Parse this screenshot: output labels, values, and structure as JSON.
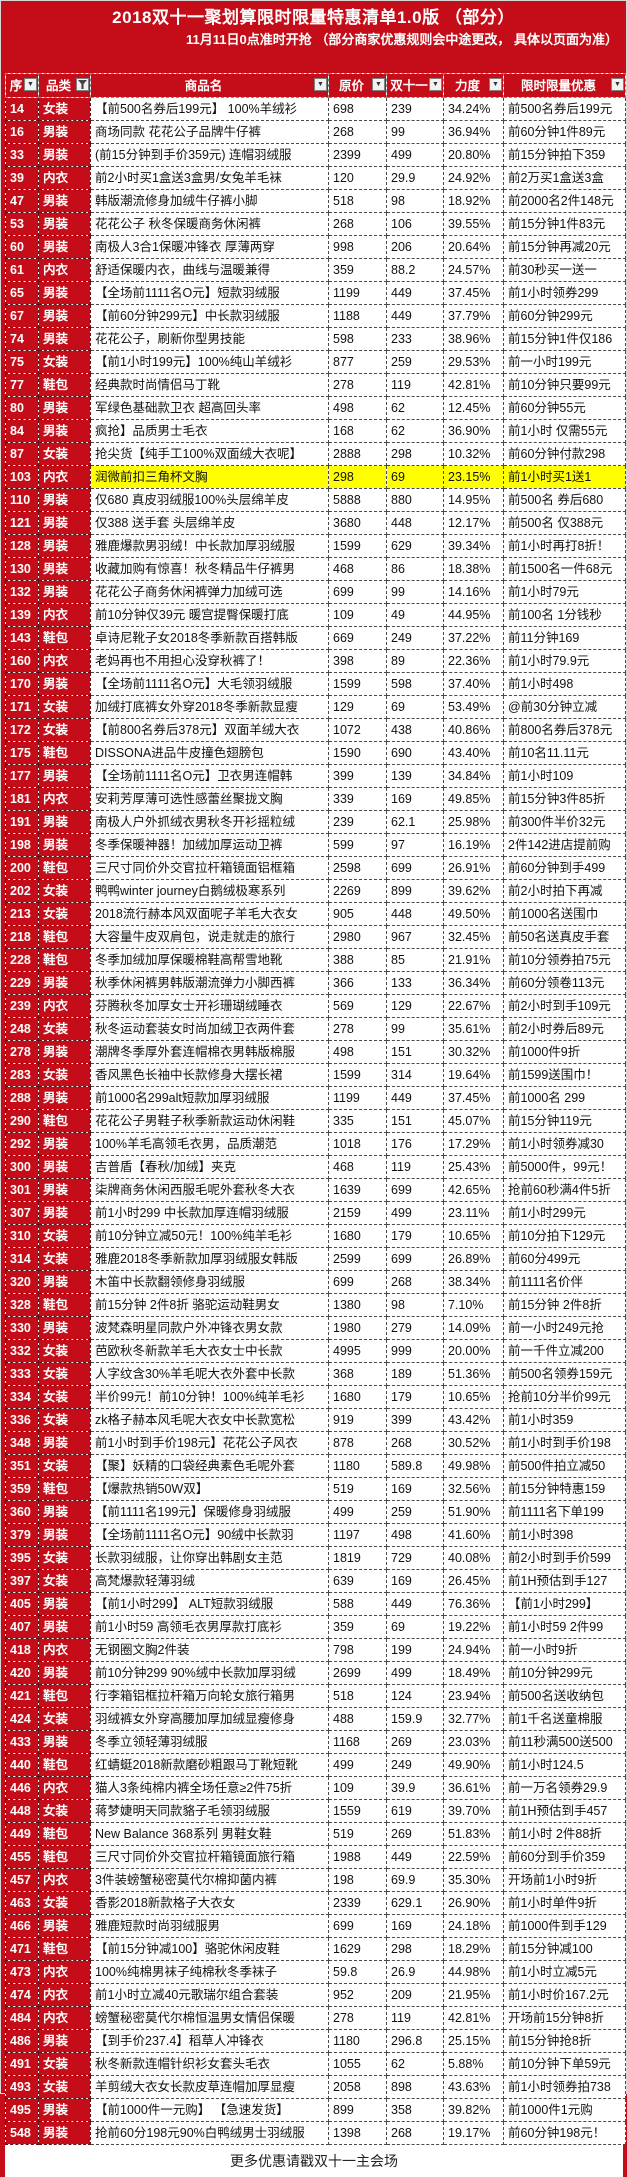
{
  "title": "2018双十一聚划算限时限量特惠清单1.0版 （部分）",
  "subtitle": "11月11日0点准时开抢 （部分商家优惠规则会中途更改， 具体以页面为准）",
  "footer_note": "更多优惠请戳双十一主会场",
  "colors": {
    "brand_red": "#c40d18",
    "highlight_yellow": "#ffff00",
    "cell_bg": "#ffffff"
  },
  "icons": {
    "dropdown_glyph": "▼",
    "funnel": "filter-funnel"
  },
  "highlight_seq": "103",
  "columns": [
    {
      "key": "seq",
      "label": "序",
      "filtered": false
    },
    {
      "key": "cat",
      "label": "品类",
      "filtered": true
    },
    {
      "key": "name",
      "label": "商品名",
      "filtered": false
    },
    {
      "key": "orig",
      "label": "原价",
      "filtered": false
    },
    {
      "key": "dxi",
      "label": "双十一",
      "filtered": false
    },
    {
      "key": "rate",
      "label": "力度",
      "filtered": false
    },
    {
      "key": "promo",
      "label": "限时限量优惠",
      "filtered": false
    }
  ],
  "rows": [
    [
      "14",
      "女装",
      "【前500名券后199元】 100%羊绒衫",
      "698",
      "239",
      "34.24%",
      "前500名券后199元"
    ],
    [
      "16",
      "男装",
      "商场同款 花花公子品牌牛仔裤",
      "268",
      "99",
      "36.94%",
      "前60分钟1件89元"
    ],
    [
      "33",
      "男装",
      "(前15分钟到手价359元) 连帽羽绒服",
      "2399",
      "499",
      "20.80%",
      "前15分钟拍下359"
    ],
    [
      "39",
      "内衣",
      "前2小时买1盒送3盒男/女兔羊毛袜",
      "120",
      "29.9",
      "24.92%",
      "前2万买1盒送3盒"
    ],
    [
      "47",
      "男装",
      "韩版潮流修身加绒牛仔裤小脚",
      "518",
      "98",
      "18.92%",
      "前2000名2件148元"
    ],
    [
      "53",
      "男装",
      "花花公子 秋冬保暖商务休闲裤",
      "268",
      "106",
      "39.55%",
      "前15分钟1件83元"
    ],
    [
      "60",
      "男装",
      "南极人3合1保暖冲锋衣 厚薄两穿",
      "998",
      "206",
      "20.64%",
      "前15分钟再减20元"
    ],
    [
      "61",
      "内衣",
      "舒适保暖内衣，曲线与温暖兼得",
      "359",
      "88.2",
      "24.57%",
      "前30秒买一送一"
    ],
    [
      "65",
      "男装",
      "【全场前1111名O元】短款羽绒服",
      "1199",
      "449",
      "37.45%",
      "前1小时领券299"
    ],
    [
      "67",
      "男装",
      "【前60分钟299元】中长款羽绒服",
      "1188",
      "449",
      "37.79%",
      "前60分钟299元"
    ],
    [
      "74",
      "男装",
      "花花公子，刷新你型男技能",
      "598",
      "233",
      "38.96%",
      "前15分钟1件仅186"
    ],
    [
      "75",
      "女装",
      "【前1小时199元】100%纯山羊绒衫",
      "877",
      "259",
      "29.53%",
      "前一小时199元"
    ],
    [
      "77",
      "鞋包",
      "经典款时尚情侣马丁靴",
      "278",
      "119",
      "42.81%",
      "前10分钟只要99元"
    ],
    [
      "80",
      "男装",
      "军绿色基础款卫衣 超高回头率",
      "498",
      "62",
      "12.45%",
      "前60分钟55元"
    ],
    [
      "84",
      "男装",
      "疯抢】品质男士毛衣",
      "168",
      "62",
      "36.90%",
      "前1小时 仅需55元"
    ],
    [
      "87",
      "女装",
      "抢尖货【纯手工100%双面绒大衣呢】",
      "2888",
      "298",
      "10.32%",
      "前60分钟付款298"
    ],
    [
      "103",
      "内衣",
      "润微前扣三角杯文胸",
      "298",
      "69",
      "23.15%",
      "前1小时买1送1"
    ],
    [
      "110",
      "男装",
      "仅680 真皮羽绒服100%头层绵羊皮",
      "5888",
      "880",
      "14.95%",
      "前500名 券后680"
    ],
    [
      "121",
      "男装",
      "仅388 送手套 头层绵羊皮",
      "3680",
      "448",
      "12.17%",
      "前500名 仅388元"
    ],
    [
      "128",
      "男装",
      "雅鹿爆款男羽绒！中长款加厚羽绒服",
      "1599",
      "629",
      "39.34%",
      "前1小时再打8折！"
    ],
    [
      "130",
      "男装",
      "收藏加购有惊喜！秋冬精品牛仔裤男",
      "468",
      "86",
      "18.38%",
      "前1500名一件68元"
    ],
    [
      "132",
      "男装",
      "花花公子商务休闲裤弹力加绒可选",
      "699",
      "99",
      "14.16%",
      "前1小时79元"
    ],
    [
      "139",
      "内衣",
      "前10分钟仅39元 暖宫提臀保暖打底",
      "109",
      "49",
      "44.95%",
      "前100名 1分钱秒"
    ],
    [
      "143",
      "鞋包",
      "卓诗尼靴子女2018冬季新款百搭韩版",
      "669",
      "249",
      "37.22%",
      "前11分钟169"
    ],
    [
      "160",
      "内衣",
      "老妈再也不用担心没穿秋裤了！",
      "398",
      "89",
      "22.36%",
      "前1小时79.9元"
    ],
    [
      "170",
      "男装",
      "【全场前1111名O元】大毛领羽绒服",
      "1599",
      "598",
      "37.40%",
      "前1小时498"
    ],
    [
      "171",
      "女装",
      "加绒打底裤女外穿2018冬季新款显瘦",
      "129",
      "69",
      "53.49%",
      "@前30分钟立减"
    ],
    [
      "172",
      "女装",
      "【前800名券后378元】双面羊绒大衣",
      "1072",
      "438",
      "40.86%",
      "前800名券后378元"
    ],
    [
      "175",
      "鞋包",
      "DISSONA进品牛皮撞色翅膀包",
      "1590",
      "690",
      "43.40%",
      "前10名11.11元"
    ],
    [
      "177",
      "男装",
      "【全场前1111名O元】卫衣男连帽韩",
      "399",
      "139",
      "34.84%",
      "前1小时109"
    ],
    [
      "181",
      "内衣",
      "安莉芳厚薄可选性感蕾丝聚拢文胸",
      "339",
      "169",
      "49.85%",
      "前15分钟3件85折"
    ],
    [
      "191",
      "男装",
      "南极人户外抓绒衣男秋冬开衫摇粒绒",
      "239",
      "62.1",
      "25.98%",
      "前300件半价32元"
    ],
    [
      "198",
      "男装",
      "冬季保暖神器！加绒加厚运动卫裤",
      "599",
      "97",
      "16.19%",
      "2件142进店提前购"
    ],
    [
      "200",
      "鞋包",
      "三尺寸同价外交官拉杆箱镜面铝框箱",
      "2598",
      "699",
      "26.91%",
      "前60分钟到手499"
    ],
    [
      "202",
      "女装",
      "鸭鸭winter journey白鹅绒极寒系列",
      "2269",
      "899",
      "39.62%",
      "前2小时拍下再减"
    ],
    [
      "213",
      "女装",
      "2018流行赫本风双面呢子羊毛大衣女",
      "905",
      "448",
      "49.50%",
      "前1000名送围巾"
    ],
    [
      "218",
      "鞋包",
      "大容量牛皮双肩包，说走就走的旅行",
      "2980",
      "967",
      "32.45%",
      "前50名送真皮手套"
    ],
    [
      "228",
      "鞋包",
      "冬季加绒加厚保暖棉鞋高帮雪地靴",
      "388",
      "85",
      "21.91%",
      "前10分领券拍75元"
    ],
    [
      "229",
      "男装",
      "秋季休闲裤男韩版潮流弹力小脚西裤",
      "366",
      "133",
      "36.34%",
      "前60分领卷113元"
    ],
    [
      "239",
      "内衣",
      "芬腾秋冬加厚女士开衫珊瑚绒睡衣",
      "569",
      "129",
      "22.67%",
      "前2小时到手109元"
    ],
    [
      "248",
      "女装",
      "秋冬运动套装女时尚加绒卫衣两件套",
      "278",
      "99",
      "35.61%",
      "前2小时券后89元"
    ],
    [
      "278",
      "男装",
      "潮牌冬季厚外套连帽棉衣男韩版棉服",
      "498",
      "151",
      "30.32%",
      "前1000件9折"
    ],
    [
      "283",
      "女装",
      "香风黑色长袖中长款修身大摆长裙",
      "1599",
      "314",
      "19.64%",
      "前1599送围巾！"
    ],
    [
      "288",
      "男装",
      "前1000名299alt短款加厚羽绒服",
      "1199",
      "449",
      "37.45%",
      "前1000名 299"
    ],
    [
      "290",
      "鞋包",
      "花花公子男鞋子秋季新款运动休闲鞋",
      "335",
      "151",
      "45.07%",
      "前15分钟119元"
    ],
    [
      "292",
      "男装",
      "100%羊毛高领毛衣男，品质潮范",
      "1018",
      "176",
      "17.29%",
      "前1小时领券减30"
    ],
    [
      "300",
      "男装",
      "吉普盾【春秋/加绒】夹克",
      "468",
      "119",
      "25.43%",
      "前5000件，99元！"
    ],
    [
      "301",
      "男装",
      "柒牌商务休闲西服毛呢外套秋冬大衣",
      "1639",
      "699",
      "42.65%",
      "抢前60秒满4件5折"
    ],
    [
      "307",
      "男装",
      "前1小时299 中长款加厚连帽羽绒服",
      "2159",
      "499",
      "23.11%",
      "前1小时299元"
    ],
    [
      "310",
      "女装",
      "前10分钟立减50元！100%纯羊毛衫",
      "1680",
      "179",
      "10.65%",
      "前10分拍下129元"
    ],
    [
      "314",
      "女装",
      "雅鹿2018冬季新款加厚羽绒服女韩版",
      "2599",
      "699",
      "26.89%",
      "前60分499元"
    ],
    [
      "320",
      "男装",
      "木笛中长款翻领修身羽绒服",
      "699",
      "268",
      "38.34%",
      "前1111名价伴"
    ],
    [
      "328",
      "鞋包",
      "前15分钟 2件8折 骆驼运动鞋男女",
      "1380",
      "98",
      "7.10%",
      "前15分钟 2件8折"
    ],
    [
      "330",
      "男装",
      "波梵森明星同款户外冲锋衣男女款",
      "1980",
      "279",
      "14.09%",
      "前一小时249元抢"
    ],
    [
      "332",
      "女装",
      "芭欧秋冬新款羊毛大衣女士中长款",
      "4995",
      "999",
      "20.00%",
      "前一千件立减200"
    ],
    [
      "333",
      "女装",
      "人字纹含30%羊毛呢大衣外套中长款",
      "368",
      "189",
      "51.36%",
      "前500名领券159元"
    ],
    [
      "334",
      "女装",
      "半价99元！前10分钟！100%纯羊毛衫",
      "1680",
      "179",
      "10.65%",
      "抢前10分半价99元"
    ],
    [
      "336",
      "女装",
      "zk格子赫本风毛呢大衣女中长款宽松",
      "919",
      "399",
      "43.42%",
      "前1小时359"
    ],
    [
      "348",
      "男装",
      "前1小时到手价198元】花花公子风衣",
      "878",
      "268",
      "30.52%",
      "前1小时到手价198"
    ],
    [
      "351",
      "女装",
      "【聚】妖精的口袋经典素色毛呢外套",
      "1180",
      "589.8",
      "49.98%",
      "前500件拍立减50"
    ],
    [
      "359",
      "鞋包",
      "【爆款热销50W双】",
      "519",
      "169",
      "32.56%",
      "前15分钟特惠159"
    ],
    [
      "360",
      "男装",
      "【前1111名199元】保暖修身羽绒服",
      "499",
      "259",
      "51.90%",
      "前1111名下单199"
    ],
    [
      "379",
      "男装",
      "【全场前1111名O元】90绒中长款羽",
      "1197",
      "498",
      "41.60%",
      "前1小时398"
    ],
    [
      "395",
      "女装",
      "长款羽绒服，让你穿出韩剧女主范",
      "1819",
      "729",
      "40.08%",
      "前2小时到手价599"
    ],
    [
      "397",
      "女装",
      "高梵爆款轻薄羽绒",
      "639",
      "169",
      "26.45%",
      "前1H预估到手127"
    ],
    [
      "405",
      "男装",
      "【前1小时299】 ALT短款羽绒服",
      "588",
      "449",
      "76.36%",
      "【前1小时299】"
    ],
    [
      "407",
      "男装",
      "前1小时59 高领毛衣男厚款打底衫",
      "359",
      "69",
      "19.22%",
      "前1小时59 2件99"
    ],
    [
      "418",
      "内衣",
      "无钢圈文胸2件装",
      "798",
      "199",
      "24.94%",
      "前一小时9折"
    ],
    [
      "420",
      "男装",
      "前10分钟299 90%绒中长款加厚羽绒",
      "2699",
      "499",
      "18.49%",
      "前10分钟299元"
    ],
    [
      "421",
      "鞋包",
      "行李箱铝框拉杆箱万向轮女旅行箱男",
      "518",
      "124",
      "23.94%",
      "前500名送收纳包"
    ],
    [
      "424",
      "女装",
      "羽绒裤女外穿高腰加厚加绒显瘦修身",
      "488",
      "159.9",
      "32.77%",
      "前1千名送童棉服"
    ],
    [
      "433",
      "男装",
      "冬季立领轻薄羽绒服",
      "1168",
      "269",
      "23.03%",
      "前11秒满500送500"
    ],
    [
      "440",
      "鞋包",
      "红蜻蜓2018新款磨砂粗跟马丁靴短靴",
      "499",
      "249",
      "49.90%",
      "前1小时124.5"
    ],
    [
      "446",
      "内衣",
      "猫人3条纯棉内裤全场任意≥2件75折",
      "109",
      "39.9",
      "36.61%",
      "前一万名领券29.9"
    ],
    [
      "448",
      "女装",
      "蒋梦婕明天同款貉子毛领羽绒服",
      "1559",
      "619",
      "39.70%",
      "前1H预估到手457"
    ],
    [
      "449",
      "鞋包",
      "New Balance 368系列 男鞋女鞋",
      "519",
      "269",
      "51.83%",
      "前1小时 2件88折"
    ],
    [
      "455",
      "鞋包",
      "三尺寸同价外交官拉杆箱镜面旅行箱",
      "1988",
      "449",
      "22.59%",
      "前60分到手价359"
    ],
    [
      "457",
      "内衣",
      "3件装螃蟹秘密莫代尔棉抑菌内裤",
      "198",
      "69.9",
      "35.30%",
      "开场前1小时9折"
    ],
    [
      "463",
      "女装",
      "香影2018新款格子大衣女",
      "2339",
      "629.1",
      "26.90%",
      "前1小时单件9折"
    ],
    [
      "466",
      "男装",
      "雅鹿短款时尚羽绒服男",
      "699",
      "169",
      "24.18%",
      "前1000件到手129"
    ],
    [
      "471",
      "鞋包",
      "【前15分钟减100】骆驼休闲皮鞋",
      "1629",
      "298",
      "18.29%",
      "前15分钟减100"
    ],
    [
      "473",
      "内衣",
      "100%纯棉男袜子纯棉秋冬季袜子",
      "59.8",
      "26.9",
      "44.98%",
      "前1小时立减5元"
    ],
    [
      "474",
      "内衣",
      "前1小时立减40元歌瑞尔组合套装",
      "952",
      "209",
      "21.95%",
      "前1小时价167.2元"
    ],
    [
      "484",
      "内衣",
      "螃蟹秘密莫代尔棉恒温男女情侣保暖",
      "278",
      "119",
      "42.81%",
      "开场前15分钟8折"
    ],
    [
      "486",
      "男装",
      "【到手价237.4】稻草人冲锋衣",
      "1180",
      "296.8",
      "25.15%",
      "前15分钟抢8折"
    ],
    [
      "491",
      "女装",
      "秋冬新款连帽针织衫女套头毛衣",
      "1055",
      "62",
      "5.88%",
      "前10分钟下单59元"
    ],
    [
      "493",
      "女装",
      "羊剪绒大衣女长款皮草连帽加厚显瘦",
      "2058",
      "898",
      "43.63%",
      "前1小时领券拍738"
    ],
    [
      "495",
      "男装",
      "【前1000件一元购】 【急速发货】",
      "899",
      "358",
      "39.82%",
      "前1000件1元购"
    ],
    [
      "548",
      "男装",
      "抢前60分198元90%白鸭绒男士羽绒服",
      "1398",
      "268",
      "19.17%",
      "前60分钟198元！"
    ]
  ]
}
